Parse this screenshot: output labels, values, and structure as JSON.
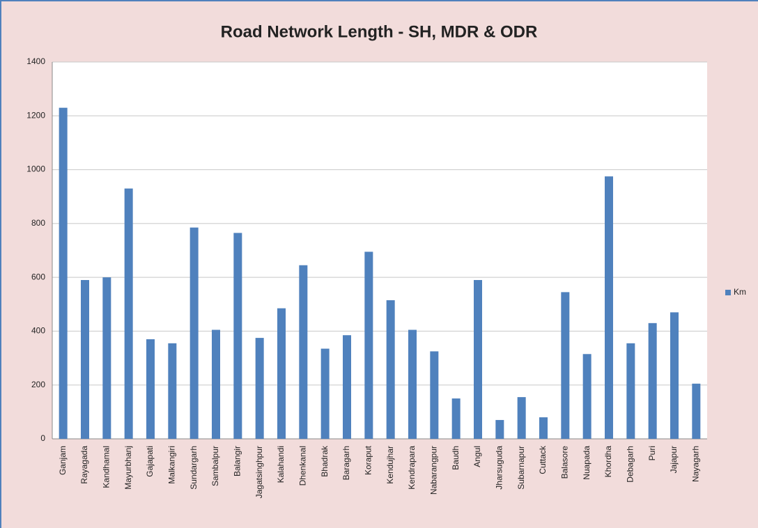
{
  "chart_data": {
    "type": "bar",
    "title": "Road Network Length - SH, MDR & ODR",
    "categories": [
      "Ganjam",
      "Rayagada",
      "Kandhamal",
      "Mayurbhanj",
      "Gajapati",
      "Malkangiri",
      "Sundargarh",
      "Sambalpur",
      "Balangir",
      "Jagatsinghpur",
      "Kalahandi",
      "Dhenkanal",
      "Bhadrak",
      "Baragarh",
      "Koraput",
      "Kendujhar",
      "Kendrapara",
      "Nabarangpur",
      "Baudh",
      "Angul",
      "Jharsuguda",
      "Subarnapur",
      "Cuttack",
      "Balasore",
      "Nuapada",
      "Khordha",
      "Debagarh",
      "Puri",
      "Jajapur",
      "Nayagarh"
    ],
    "series": [
      {
        "name": "Km",
        "color": "#4f81bd",
        "values": [
          1230,
          590,
          600,
          930,
          370,
          355,
          785,
          405,
          765,
          375,
          485,
          645,
          335,
          385,
          695,
          515,
          405,
          325,
          150,
          590,
          70,
          155,
          80,
          545,
          315,
          975,
          355,
          430,
          470,
          205
        ]
      }
    ],
    "ylim": [
      0,
      1400
    ],
    "yticks": [
      0,
      200,
      400,
      600,
      800,
      1000,
      1200,
      1400
    ],
    "grid": true,
    "legend": "right"
  }
}
